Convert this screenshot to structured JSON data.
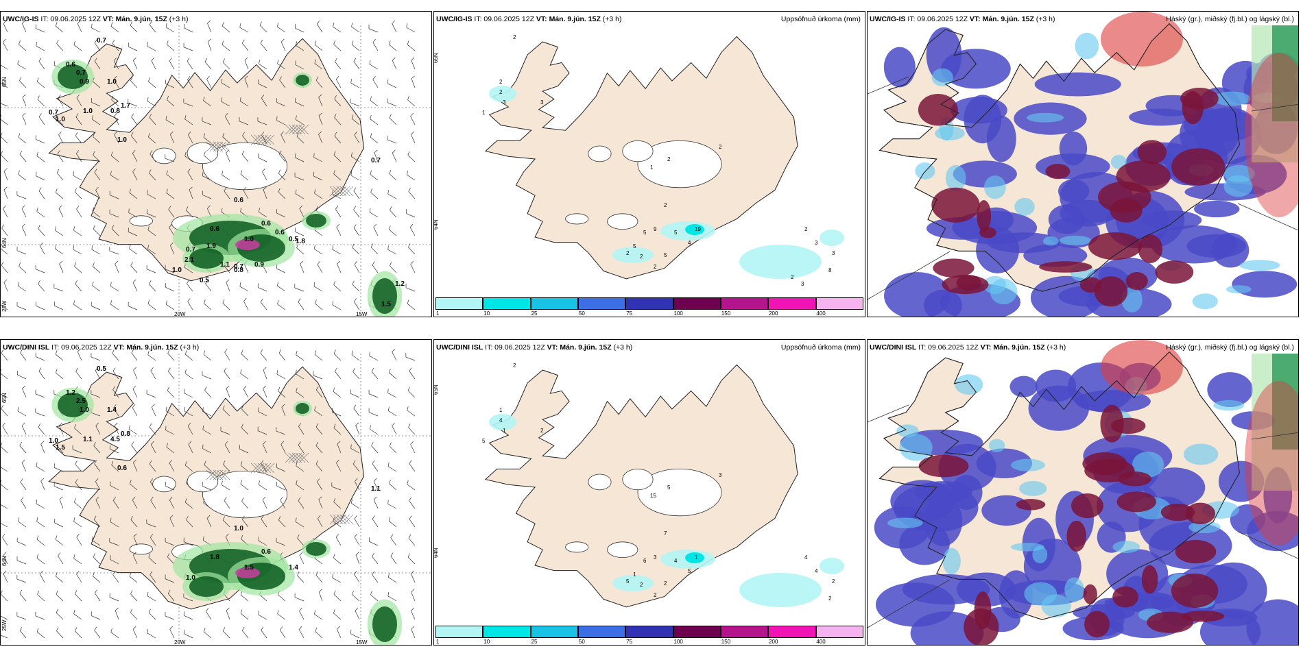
{
  "panels": [
    {
      "id": "tl",
      "title_model": "UWC/IG-IS",
      "title_it": "IT: 09.06.2025 12Z",
      "title_vt": "VT: Mán. 9.jún. 15Z",
      "title_lead": "(+3 h)",
      "right_title": "",
      "type": "wind",
      "lon_labels": [
        "20W",
        "15W"
      ],
      "lat_labels": [
        "65N",
        "64N",
        "25W"
      ],
      "values": [
        "0.7",
        "0.6",
        "0.7",
        "0.9",
        "1.0",
        "1.7",
        "1.0",
        "0.8",
        "0.7",
        "1.0",
        "1.0",
        "0.7",
        "0.6",
        "0.6",
        "0.6",
        "1.0",
        "0.5",
        "0.7",
        "1.9",
        "1.1",
        "0.6",
        "2.1",
        "1.8",
        "0.5",
        "0.7",
        "1.0",
        "0.8",
        "0.9",
        "1.5",
        "1.2"
      ]
    },
    {
      "id": "tm",
      "title_model": "UWC/IG-IS",
      "title_it": "IT: 09.06.2025 12Z",
      "title_vt": "VT: Mán. 9.jún. 15Z",
      "title_lead": "(+3 h)",
      "right_title": "Uppsöfnuð úrkoma (mm)",
      "type": "precip",
      "lat_labels": [
        "65N",
        "64N"
      ],
      "values": [
        "2",
        "2",
        "2",
        "3",
        "3",
        "1",
        "1",
        "2",
        "2",
        "2",
        "5",
        "9",
        "5",
        "19",
        "4",
        "5",
        "5",
        "2",
        "2",
        "2",
        "2",
        "3",
        "3",
        "8",
        "2",
        "3"
      ]
    },
    {
      "id": "tr",
      "title_model": "UWC/IG-IS",
      "title_it": "IT: 09.06.2025 12Z",
      "title_vt": "VT: Mán. 9.jún. 15Z",
      "title_lead": "(+3 h)",
      "right_title": "Háský (gr.), miðský (fj.bl.) og lágský (bl.)",
      "type": "cloud"
    },
    {
      "id": "bl",
      "title_model": "UWC/DINI ISL",
      "title_it": "IT: 09.06.2025 12Z",
      "title_vt": "VT: Mán. 9.jún. 15Z",
      "title_lead": "(+3 h)",
      "right_title": "",
      "type": "wind",
      "lon_labels": [
        "20W",
        "15W"
      ],
      "lat_labels": [
        "65N",
        "64N",
        "25W"
      ],
      "values": [
        "0.5",
        "1.2",
        "2.5",
        "1.0",
        "1.4",
        "0.8",
        "1.1",
        "4.5",
        "1.0",
        "1.5",
        "0.6",
        "1.1",
        "1.0",
        "1.8",
        "0.6",
        "1.5",
        "1.4",
        "1.0"
      ]
    },
    {
      "id": "bm",
      "title_model": "UWC/DINI ISL",
      "title_it": "IT: 09.06.2025 12Z",
      "title_vt": "VT: Mán. 9.jún. 15Z",
      "title_lead": "(+3 h)",
      "right_title": "Uppsöfnuð úrkoma (mm)",
      "type": "precip",
      "lat_labels": [
        "65N",
        "64N"
      ],
      "values": [
        "2",
        "1",
        "4",
        "1",
        "2",
        "5",
        "15",
        "5",
        "3",
        "7",
        "6",
        "3",
        "4",
        "1",
        "5",
        "2",
        "1",
        "2",
        "5",
        "2",
        "4",
        "4",
        "2",
        "2"
      ]
    },
    {
      "id": "br",
      "title_model": "UWC/DINI ISL",
      "title_it": "IT: 09.06.2025 12Z",
      "title_vt": "VT: Mán. 9.jún. 15Z",
      "title_lead": "(+3 h)",
      "right_title": "Háský (gr.), miðský (fj.bl.) og lágský (bl.)",
      "type": "cloud"
    }
  ],
  "colorbar": {
    "labels": [
      "1",
      "10",
      "25",
      "50",
      "75",
      "100",
      "150",
      "200",
      "400"
    ],
    "colors": [
      "#b3f5f5",
      "#00e6e6",
      "#19c3e6",
      "#3c6ee6",
      "#3232b4",
      "#6e0050",
      "#b4148c",
      "#f014b4",
      "#f5b4f0"
    ]
  },
  "colors": {
    "land": "#f5e6d6",
    "glacier": "#ffffff",
    "low_cloud": "#4a4ac8",
    "mid_cloud": "#64c8f0",
    "high_cloud": "#dc3c3c",
    "dark_cloud": "#7a1438",
    "precip_light": "#b3f5f5",
    "green_dark": "#0a5a1e",
    "green_light": "#a0e6a0"
  }
}
